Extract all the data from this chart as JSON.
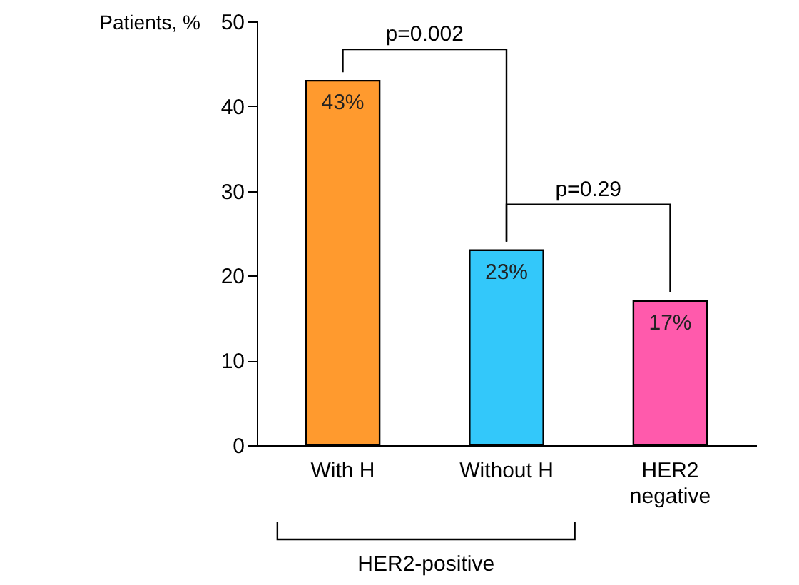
{
  "chart_data": {
    "type": "bar",
    "ylabel": "Patients, %",
    "categories": [
      "With H",
      "Without H",
      "HER2\nnegative"
    ],
    "values": [
      43,
      23,
      17
    ],
    "colors": [
      "#ff9a2e",
      "#33c8fa",
      "#ff5aac"
    ],
    "value_labels": [
      "43%",
      "23%",
      "17%"
    ],
    "ylim": [
      0,
      50
    ],
    "yticks": [
      0,
      10,
      20,
      30,
      40,
      50
    ],
    "grid": false,
    "legend": false,
    "annotations": [
      "p=0.002",
      "p=0.29",
      "HER2-positive"
    ]
  }
}
